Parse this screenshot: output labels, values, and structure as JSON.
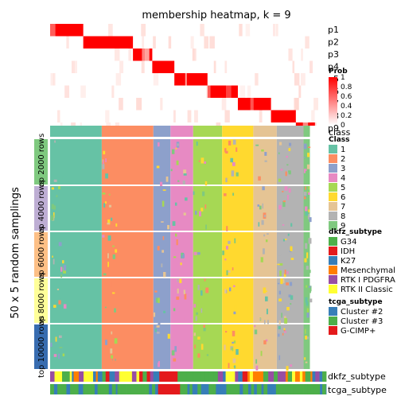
{
  "chart_data": {
    "type": "heatmap",
    "title": "membership heatmap, k = 9",
    "ylabel": "50 x 5 random samplings",
    "membership_rows": [
      "p1",
      "p2",
      "p3",
      "p4",
      "p5",
      "p6",
      "p7",
      "p8",
      "p9"
    ],
    "class_annotation_label": "class",
    "top_n_groups": [
      "top 2000 rows",
      "top 4000 rows",
      "top 6000 rows",
      "top 8000 rows",
      "top 10000 rows"
    ],
    "top_n_colors": [
      "#7fc97f",
      "#beaed4",
      "#fdc086",
      "#ffff99",
      "#386cb0"
    ],
    "bottom_annotations": [
      "dkfz_subtype",
      "tcga_subtype"
    ],
    "legends": {
      "prob": {
        "title": "Prob",
        "ticks": [
          "1",
          "0.8",
          "0.6",
          "0.4",
          "0.2",
          "0"
        ],
        "color_low": "#ffffff",
        "color_high": "#ff0000"
      },
      "class": {
        "title": "Class",
        "levels": [
          "1",
          "2",
          "3",
          "4",
          "5",
          "6",
          "7",
          "8",
          "9"
        ],
        "colors": [
          "#66c2a5",
          "#fc8d62",
          "#8da0cb",
          "#e78ac3",
          "#a6d854",
          "#ffd92f",
          "#e5c494",
          "#b3b3b3",
          "#7fc97f"
        ]
      },
      "dkfz_subtype": {
        "title": "dkfz_subtype",
        "levels": [
          "G34",
          "IDH",
          "K27",
          "Mesenchymal",
          "RTK I PDGFRA",
          "RTK II Classic"
        ],
        "colors": [
          "#4daf4a",
          "#e41a1c",
          "#377eb8",
          "#ff7f00",
          "#984ea3",
          "#ffff33"
        ]
      },
      "tcga_subtype": {
        "title": "tcga_subtype",
        "levels": [
          "Cluster #2",
          "Cluster #3",
          "G-CIMP+"
        ],
        "colors": [
          "#377eb8",
          "#4daf4a",
          "#e41a1c"
        ]
      }
    },
    "class_blocks": [
      {
        "class": 1,
        "fraction": 0.187
      },
      {
        "class": 2,
        "fraction": 0.187
      },
      {
        "class": 3,
        "fraction": 0.062
      },
      {
        "class": 4,
        "fraction": 0.082
      },
      {
        "class": 5,
        "fraction": 0.105
      },
      {
        "class": 6,
        "fraction": 0.113
      },
      {
        "class": 7,
        "fraction": 0.085
      },
      {
        "class": 8,
        "fraction": 0.097
      },
      {
        "class": 9,
        "fraction": 0.023
      },
      {
        "class": 0,
        "fraction": 0.059
      }
    ],
    "membership_prob": [
      [
        1.0,
        0.0,
        0.0,
        0.0,
        0.0,
        0.0,
        0.0,
        0.0,
        0.0
      ],
      [
        0.0,
        1.0,
        0.0,
        0.0,
        0.0,
        0.0,
        0.0,
        0.0,
        0.0
      ],
      [
        0.0,
        0.0,
        1.0,
        0.0,
        0.0,
        0.0,
        0.0,
        0.0,
        0.0
      ],
      [
        0.0,
        0.0,
        0.0,
        1.0,
        0.0,
        0.0,
        0.0,
        0.0,
        0.0
      ],
      [
        0.0,
        0.0,
        0.0,
        0.0,
        1.0,
        0.0,
        0.0,
        0.0,
        0.0
      ],
      [
        0.0,
        0.0,
        0.0,
        0.0,
        0.0,
        1.0,
        0.0,
        0.0,
        0.0
      ],
      [
        0.0,
        0.0,
        0.0,
        0.0,
        0.0,
        0.0,
        1.0,
        0.0,
        0.0
      ],
      [
        0.0,
        0.0,
        0.0,
        0.0,
        0.0,
        0.0,
        0.0,
        1.0,
        0.0
      ],
      [
        0.0,
        0.0,
        0.0,
        0.0,
        0.0,
        0.0,
        0.0,
        0.0,
        1.0
      ]
    ]
  }
}
